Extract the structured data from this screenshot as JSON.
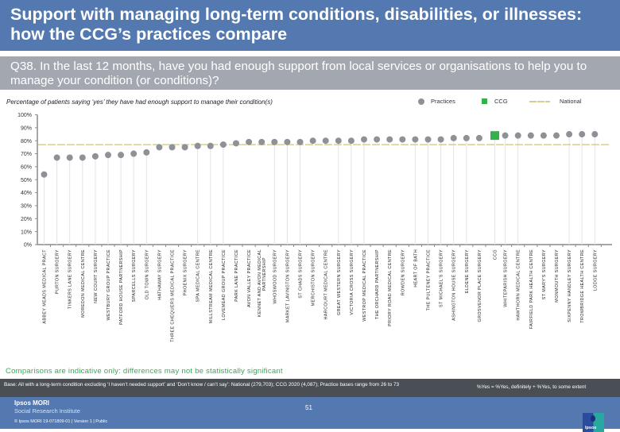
{
  "header": {
    "title": "Support with managing long-term conditions, disabilities, or illnesses: how the CCG’s practices compare"
  },
  "question": {
    "text": "Q38. In the last 12 months, have you had enough support from local services or organisations to help you to manage your condition (or conditions)?"
  },
  "chart_subtitle": "Percentage of patients saying ‘yes’ they have had enough support to manage their condition(s)",
  "legend": {
    "practices": "Practices",
    "ccg": "CCG",
    "national": "National"
  },
  "colors": {
    "practice_marker": "#8e9296",
    "ccg_marker": "#33b24c",
    "national_line": "#d6cd94",
    "title_bar": "#5379b0",
    "question_bar": "#a3a8b0",
    "comparisons_text": "#3aaa57"
  },
  "chart_data": {
    "type": "scatter",
    "title": "Percentage of patients saying ‘yes’ they have had enough support to manage their condition(s)",
    "xlabel": "",
    "ylabel": "",
    "ylim": [
      0,
      100
    ],
    "y_ticks": [
      0,
      10,
      20,
      30,
      40,
      50,
      60,
      70,
      80,
      90,
      100
    ],
    "y_tick_labels": [
      "0%",
      "10%",
      "20%",
      "30%",
      "40%",
      "50%",
      "60%",
      "70%",
      "80%",
      "90%",
      "100%"
    ],
    "grid": false,
    "legend_position": "top-right",
    "national_value": 77,
    "categories": [
      "ABBEY MEADS MEDICAL PRACT",
      "PURTON SURGERY",
      "TINKERS LANE SURGERY",
      "MOREDON MEDICAL CENTRE",
      "NEW COURT SURGERY",
      "WESTBURY GROUP PRACTICE",
      "PATFORD HOUSE PARTNERSHIP",
      "SPARCELLS SURGERY",
      "OLD TOWN SURGERY",
      "HATHAWAY SURGERY",
      "THREE CHEQUERS MEDICAL PRACTICE",
      "PHOENIX SURGERY",
      "SPA MEDICAL CENTRE",
      "MILLSTREAM MEDICAL CENTRE",
      "LOVEMEAD GROUP PRACTICE",
      "PARK LANE PRACTICE",
      "AVON VALLEY PRACTICE",
      "KENNET AND AVON MEDICAL PARTNERSHIP",
      "WHOSWOOD SURGERY",
      "MARKET LAVINGTON SURGERY",
      "ST CHADS SURGERY",
      "MERCHISTON SURGERY",
      "HARCOURT MEDICAL CENTRE",
      "GREAT WESTERN SURGERY",
      "VICTORIA CROSS SURGERY",
      "WESTROP MEDICAL PRACTICE",
      "THE ORCHARD PARTNERSHIP",
      "PRIORY ROAD MEDICAL CENTRE",
      "ROWDEN SURGERY",
      "HEART OF BATH",
      "THE PULTENEY PRACTICE",
      "ST MICHAEL'S SURGERY",
      "ASHINGTON HOUSE SURGERY",
      "ELDENE SURGERY",
      "GROSVENOR PLACE SURGERY",
      "CCG",
      "WHITEPARISH SURGERY",
      "HAWTHORN MEDICAL CENTRE",
      "FAIRFIELD PARK HEALTH CENTRE",
      "ST MARY'S SURGERY",
      "MONMOUTH SURGERY",
      "SIXPENNY HANDLEY SURGERY",
      "TROWBRIDGE HEALTH CENTRE",
      "LODGE SURGERY"
    ],
    "series": [
      {
        "name": "Practices",
        "values": [
          54,
          67,
          67,
          67,
          68,
          69,
          69,
          70,
          71,
          75,
          75,
          75,
          76,
          76,
          77,
          78,
          79,
          79,
          79,
          79,
          79,
          80,
          80,
          80,
          80,
          81,
          81,
          81,
          81,
          81,
          81,
          81,
          82,
          82,
          82,
          null,
          84,
          84,
          84,
          84,
          84,
          85,
          85,
          85
        ]
      },
      {
        "name": "CCG",
        "values": [
          null,
          null,
          null,
          null,
          null,
          null,
          null,
          null,
          null,
          null,
          null,
          null,
          null,
          null,
          null,
          null,
          null,
          null,
          null,
          null,
          null,
          null,
          null,
          null,
          null,
          null,
          null,
          null,
          null,
          null,
          null,
          null,
          null,
          null,
          null,
          84,
          null,
          null,
          null,
          null,
          null,
          null,
          null,
          null
        ]
      },
      {
        "name": "National",
        "values": [
          77
        ]
      }
    ],
    "drop_lines": [
      true,
      true,
      true,
      true,
      true,
      true,
      true,
      true,
      true,
      false,
      false,
      false,
      true,
      true,
      true,
      false,
      false,
      false,
      true,
      true,
      true,
      false,
      false,
      true,
      true,
      true,
      false,
      false,
      false,
      true,
      true,
      true,
      true,
      true,
      false,
      true,
      true,
      true,
      false,
      false,
      false,
      true,
      true,
      true
    ]
  },
  "footer": {
    "comparisons": "Comparisons are indicative only: differences may not be statistically significant",
    "base": "Base: All with a long-term condition excluding ‘I haven’t needed support’ and ‘Don’t know / can’t say’: National (279,703); CCG 2020 (4,087); Practice bases range from 26 to 73",
    "yes_note": "%Yes = %Yes, definitely + %Yes, to some extent",
    "company": "Ipsos MORI",
    "institute": "Social Research Institute",
    "copyright": "© Ipsos MORI     19-071809-01 | Version 1 | Public",
    "page_number": "51",
    "logo_text": "Ipsos"
  }
}
